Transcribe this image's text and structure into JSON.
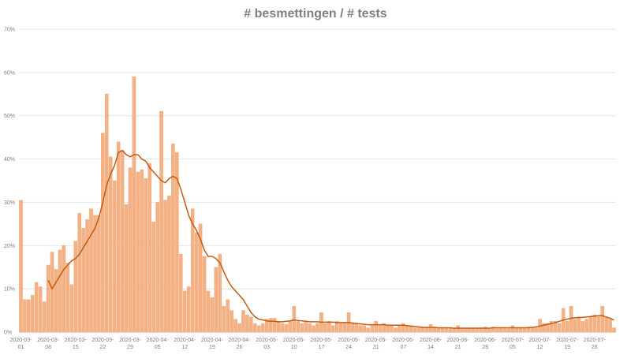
{
  "chart_data": {
    "type": "bar",
    "title": "# besmettingen / # tests",
    "categories": [
      "2020-03-01",
      null,
      null,
      null,
      null,
      null,
      null,
      "2020-03-08",
      null,
      null,
      null,
      null,
      null,
      null,
      "2020-03-15",
      null,
      null,
      null,
      null,
      null,
      null,
      "2020-03-22",
      null,
      null,
      null,
      null,
      null,
      null,
      "2020-03-29",
      null,
      null,
      null,
      null,
      null,
      null,
      "2020-04-05",
      null,
      null,
      null,
      null,
      null,
      null,
      "2020-04-12",
      null,
      null,
      null,
      null,
      null,
      null,
      "2020-04-19",
      null,
      null,
      null,
      null,
      null,
      null,
      "2020-04-26",
      null,
      null,
      null,
      null,
      null,
      null,
      "2020-05-03",
      null,
      null,
      null,
      null,
      null,
      null,
      "2020-05-10",
      null,
      null,
      null,
      null,
      null,
      null,
      "2020-05-17",
      null,
      null,
      null,
      null,
      null,
      null,
      "2020-05-24",
      null,
      null,
      null,
      null,
      null,
      null,
      "2020-05-31",
      null,
      null,
      null,
      null,
      null,
      null,
      "2020-06-07",
      null,
      null,
      null,
      null,
      null,
      null,
      "2020-06-14",
      null,
      null,
      null,
      null,
      null,
      null,
      "2020-06-21",
      null,
      null,
      null,
      null,
      null,
      null,
      "2020-06-28",
      null,
      null,
      null,
      null,
      null,
      null,
      "2020-07-05",
      null,
      null,
      null,
      null,
      null,
      null,
      "2020-07-12",
      null,
      null,
      null,
      null,
      null,
      null,
      "2020-07-19",
      null,
      null,
      null,
      null,
      null,
      null,
      "2020-07-26",
      null,
      null,
      null,
      null,
      null
    ],
    "series": [
      {
        "type": "bar",
        "color": "#f4b183",
        "values": [
          30.5,
          7.5,
          7.5,
          8.5,
          11.5,
          10.5,
          7,
          15.5,
          18.5,
          14.5,
          19,
          20,
          16,
          11,
          21,
          27.5,
          24,
          26,
          28.5,
          27,
          27,
          46,
          55,
          40.5,
          35,
          44,
          42,
          29.5,
          38,
          59,
          37,
          37.5,
          35.5,
          39,
          25.5,
          30,
          51,
          30.5,
          31.5,
          43.5,
          41.5,
          18,
          9.5,
          10.5,
          28.5,
          23,
          25,
          17.5,
          9.5,
          8,
          15,
          18,
          6,
          7.5,
          5,
          3,
          2,
          5,
          4,
          3.5,
          2,
          1.5,
          2,
          3,
          3.2,
          3.2,
          2.5,
          2,
          1.8,
          2.5,
          6,
          2.5,
          2,
          2.5,
          2,
          1.5,
          2,
          4.5,
          2,
          2.5,
          1.5,
          2.5,
          2,
          2,
          4.5,
          2,
          2,
          1.5,
          1.5,
          1,
          1.5,
          2.5,
          1.5,
          2,
          1.5,
          1.5,
          1,
          1.5,
          2,
          1.5,
          1.5,
          1,
          1,
          1,
          1,
          1.8,
          1,
          1,
          1,
          1,
          0.8,
          0.8,
          1.5,
          0.8,
          0.8,
          0.8,
          0.8,
          0.8,
          0.8,
          1.2,
          0.8,
          1.2,
          0.8,
          0.8,
          0.8,
          0.8,
          1.5,
          1,
          1,
          1,
          1.2,
          1,
          1,
          3,
          2,
          2,
          2.5,
          2.5,
          2,
          5.5,
          2.5,
          6,
          3,
          3.5,
          2.5,
          3,
          3.5,
          4,
          3.5,
          6,
          3.5,
          3,
          1
        ]
      },
      {
        "type": "line",
        "color": "#c55a11",
        "values": [
          null,
          null,
          null,
          null,
          null,
          null,
          null,
          12,
          10,
          11.5,
          13,
          14.5,
          15.5,
          16.5,
          17,
          18,
          19.5,
          21,
          22.5,
          24,
          26.5,
          30,
          34,
          36.5,
          38.5,
          41.5,
          42,
          41,
          40.5,
          41,
          41,
          40,
          39.5,
          38,
          37,
          36,
          35,
          34.5,
          35.5,
          36,
          35.5,
          33,
          30,
          27,
          25,
          23.5,
          21.5,
          19,
          17.5,
          17.5,
          17,
          16,
          14,
          12,
          10.5,
          9.5,
          8.5,
          7.5,
          6,
          4.5,
          3.5,
          3,
          2.8,
          2.6,
          2.5,
          2.5,
          2.4,
          2.4,
          2.5,
          2.6,
          2.8,
          2.7,
          2.6,
          2.5,
          2.4,
          2.4,
          2.4,
          2.3,
          2.3,
          2.3,
          2.3,
          2.2,
          2.2,
          2.2,
          2.2,
          2.1,
          2,
          1.9,
          1.8,
          1.7,
          1.7,
          1.7,
          1.7,
          1.7,
          1.6,
          1.6,
          1.6,
          1.6,
          1.6,
          1.5,
          1.4,
          1.3,
          1.2,
          1.1,
          1.1,
          1.1,
          1.1,
          1,
          1,
          1,
          1,
          0.9,
          0.9,
          0.9,
          0.9,
          0.9,
          0.9,
          0.9,
          0.9,
          0.9,
          0.9,
          1,
          1,
          1,
          1,
          1,
          1,
          1,
          1,
          1,
          1,
          1.1,
          1.2,
          1.4,
          1.6,
          1.8,
          2,
          2.2,
          2.5,
          2.8,
          3,
          3.2,
          3.3,
          3.4,
          3.4,
          3.5,
          3.6,
          3.7,
          3.8,
          3.8,
          3.5,
          3.2,
          2.8
        ]
      }
    ],
    "ylim": [
      0,
      70
    ],
    "yticks": [
      {
        "value": 0,
        "label": "0%"
      },
      {
        "value": 10,
        "label": "10%"
      },
      {
        "value": 20,
        "label": "20%"
      },
      {
        "value": 30,
        "label": "30%"
      },
      {
        "value": 40,
        "label": "40%"
      },
      {
        "value": 50,
        "label": "50%"
      },
      {
        "value": 60,
        "label": "60%"
      },
      {
        "value": 70,
        "label": "70%"
      }
    ],
    "grid": true
  }
}
